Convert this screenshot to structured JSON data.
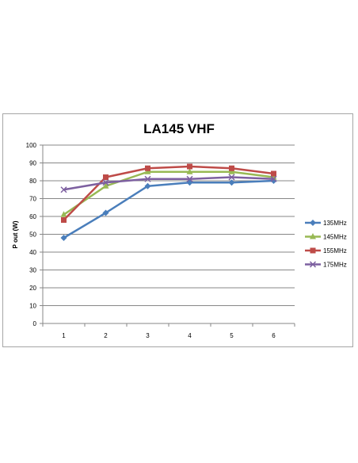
{
  "chart_data": {
    "type": "line",
    "title": "LA145 VHF",
    "xlabel": "",
    "ylabel": "P out (W)",
    "categories": [
      "1",
      "2",
      "3",
      "4",
      "5",
      "6"
    ],
    "ylim": [
      0,
      100
    ],
    "yticks": [
      "0",
      "10",
      "20",
      "30",
      "40",
      "50",
      "60",
      "70",
      "80",
      "90",
      "100"
    ],
    "grid": "horizontal",
    "legend_position": "right",
    "series": [
      {
        "name": "135MHz",
        "values": [
          48,
          62,
          77,
          79,
          79,
          80
        ],
        "color": "#4a7ebb",
        "marker": "diamond"
      },
      {
        "name": "145MHz",
        "values": [
          61,
          77,
          85,
          85,
          85,
          82
        ],
        "color": "#98b954",
        "marker": "triangle"
      },
      {
        "name": "155MHz",
        "values": [
          58,
          82,
          87,
          88,
          87,
          84
        ],
        "color": "#be4b48",
        "marker": "square"
      },
      {
        "name": "175MHz",
        "values": [
          75,
          79,
          81,
          81,
          82,
          81
        ],
        "color": "#7d60a0",
        "marker": "x"
      }
    ]
  }
}
